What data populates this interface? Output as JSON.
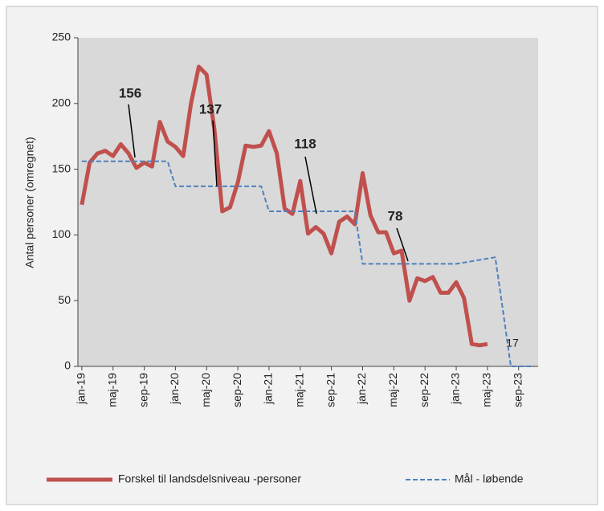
{
  "chart_data": {
    "type": "line",
    "y_label": "Antal personer (omregnet)",
    "categories": [
      "jan-19",
      null,
      null,
      null,
      "maj-19",
      null,
      null,
      null,
      "sep-19",
      null,
      null,
      null,
      "jan-20",
      null,
      null,
      null,
      "maj-20",
      null,
      null,
      null,
      "sep-20",
      null,
      null,
      null,
      "jan-21",
      null,
      null,
      null,
      "maj-21",
      null,
      null,
      null,
      "sep-21",
      null,
      null,
      null,
      "jan-22",
      null,
      null,
      null,
      "maj-22",
      null,
      null,
      null,
      "sep-22",
      null,
      null,
      null,
      "jan-23",
      null,
      null,
      null,
      "maj-23",
      null,
      null,
      null,
      "sep-23",
      null,
      null
    ],
    "series": [
      {
        "name": "Forskel til landsdelsniveau -personer",
        "color": "#c0504d",
        "style": "solid",
        "values": [
          123,
          155,
          162,
          164,
          160,
          169,
          162,
          151,
          155,
          152,
          186,
          171,
          167,
          160,
          200,
          228,
          222,
          180,
          118,
          121,
          140,
          168,
          167,
          168,
          179,
          162,
          120,
          116,
          141,
          101,
          106,
          101,
          86,
          110,
          114,
          108,
          147,
          115,
          102,
          102,
          86,
          88,
          50,
          67,
          65,
          68,
          56,
          56,
          64,
          52,
          17,
          16,
          17,
          null,
          null,
          null,
          null,
          null,
          null
        ]
      },
      {
        "name": "Mål - løbende",
        "color": "#4f81bd",
        "style": "dashed",
        "values": [
          156,
          156,
          156,
          156,
          156,
          156,
          156,
          156,
          156,
          156,
          156,
          156,
          137,
          137,
          137,
          137,
          137,
          137,
          137,
          137,
          137,
          137,
          137,
          137,
          118,
          118,
          118,
          118,
          118,
          118,
          118,
          118,
          118,
          118,
          118,
          118,
          78,
          78,
          78,
          78,
          78,
          78,
          78,
          78,
          78,
          78,
          78,
          78,
          78,
          79,
          80,
          81,
          82,
          83,
          42,
          0,
          0,
          0,
          0
        ]
      }
    ],
    "annotations": [
      "156",
      "137",
      "118",
      "78",
      "17"
    ],
    "ylim": [
      0,
      250
    ],
    "yticks": [
      0,
      50,
      100,
      150,
      200,
      250
    ],
    "grid": false
  }
}
